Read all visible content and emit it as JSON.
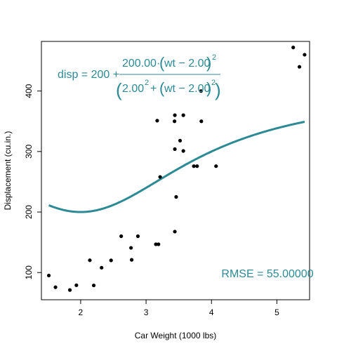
{
  "chart_data": {
    "type": "scatter",
    "title": "",
    "xlabel": "Car Weight  (1000 lbs)",
    "ylabel": "Displacement (cu.in.)",
    "xlim": [
      1.4,
      5.5
    ],
    "ylim": [
      55,
      482
    ],
    "x_ticks": [
      2,
      3,
      4,
      5
    ],
    "y_ticks": [
      100,
      200,
      300,
      400
    ],
    "grid": false,
    "points": [
      [
        1.513,
        95.1
      ],
      [
        1.615,
        75.7
      ],
      [
        1.835,
        71.1
      ],
      [
        1.935,
        79.0
      ],
      [
        2.14,
        120.3
      ],
      [
        2.2,
        78.7
      ],
      [
        2.32,
        108.0
      ],
      [
        2.465,
        120.1
      ],
      [
        2.62,
        160.0
      ],
      [
        2.77,
        140.8
      ],
      [
        2.78,
        121.0
      ],
      [
        2.875,
        160.0
      ],
      [
        3.15,
        146.7
      ],
      [
        3.17,
        351.0
      ],
      [
        3.19,
        146.7
      ],
      [
        3.215,
        258.0
      ],
      [
        3.435,
        350.0
      ],
      [
        3.44,
        360.0
      ],
      [
        3.44,
        167.6
      ],
      [
        3.44,
        304.0
      ],
      [
        3.46,
        225.0
      ],
      [
        3.52,
        318.0
      ],
      [
        3.57,
        360.0
      ],
      [
        3.57,
        301.0
      ],
      [
        3.73,
        275.8
      ],
      [
        3.78,
        275.8
      ],
      [
        3.84,
        400.0
      ],
      [
        3.845,
        350.0
      ],
      [
        4.07,
        275.8
      ],
      [
        5.25,
        472.0
      ],
      [
        5.345,
        440.0
      ],
      [
        5.424,
        460.0
      ]
    ],
    "curve": {
      "a": 200,
      "b": 200,
      "c": 2,
      "x_range": [
        1.513,
        5.424
      ],
      "color": "#2c8a94"
    },
    "annotations": {
      "formula": {
        "lhs": "disp = 200 + ",
        "numerator_coef": "200.00",
        "dot": "·",
        "numerator_group": "wt − 2.00",
        "exponent": "2",
        "denominator_base": "2.00",
        "denominator_plus": "+",
        "denominator_group": "wt − 2.00"
      },
      "rmse": "RMSE = 55.00000"
    }
  }
}
